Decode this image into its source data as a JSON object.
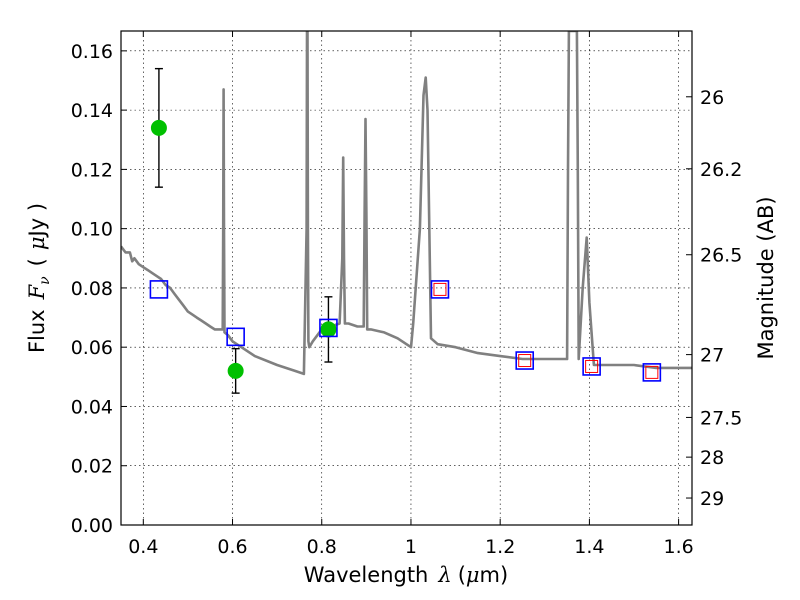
{
  "chart_data": {
    "type": "line",
    "xlabel_text": "Wavelength",
    "xlabel_symbol": "λ",
    "xlabel_unit_open": "(",
    "xlabel_unit_mu": "μ",
    "xlabel_unit_rest": "m)",
    "ylabel_text": "Flux",
    "ylabel_symbol": "F",
    "ylabel_subscript": "ν",
    "ylabel_unit_open": "(",
    "ylabel_unit_mu": "μ",
    "ylabel_unit_rest": "Jy )",
    "y2label": "Magnitude (AB)",
    "xlim": [
      0.35,
      1.63
    ],
    "ylim": [
      0.0,
      0.1667
    ],
    "grid": true,
    "x_ticks": [
      0.4,
      0.6,
      0.8,
      1.0,
      1.2,
      1.4,
      1.6
    ],
    "x_tick_labels": [
      "0.4",
      "0.6",
      "0.8",
      "1",
      "1.2",
      "1.4",
      "1.6"
    ],
    "y_ticks": [
      0.0,
      0.02,
      0.04,
      0.06,
      0.08,
      0.1,
      0.12,
      0.14,
      0.16
    ],
    "y_tick_labels": [
      "0.00",
      "0.02",
      "0.04",
      "0.06",
      "0.08",
      "0.10",
      "0.12",
      "0.14",
      "0.16"
    ],
    "y2_ticks": [
      {
        "label": "26",
        "flux": 0.1445
      },
      {
        "label": "26.2",
        "flux": 0.1202
      },
      {
        "label": "26.5",
        "flux": 0.0912
      },
      {
        "label": "27",
        "flux": 0.0575
      },
      {
        "label": "27.5",
        "flux": 0.0363
      },
      {
        "label": "28",
        "flux": 0.0229
      },
      {
        "label": "29",
        "flux": 0.0091
      }
    ],
    "series": [
      {
        "role": "model-sed",
        "color": "#808080",
        "x": [
          0.35,
          0.36,
          0.37,
          0.375,
          0.38,
          0.39,
          0.4,
          0.41,
          0.42,
          0.43,
          0.44,
          0.45,
          0.46,
          0.47,
          0.48,
          0.49,
          0.5,
          0.51,
          0.52,
          0.53,
          0.54,
          0.55,
          0.56,
          0.57,
          0.578,
          0.579,
          0.58,
          0.581,
          0.582,
          0.59,
          0.6,
          0.62,
          0.65,
          0.7,
          0.74,
          0.76,
          0.766,
          0.767,
          0.768,
          0.769,
          0.77,
          0.772,
          0.78,
          0.79,
          0.8,
          0.82,
          0.84,
          0.846,
          0.848,
          0.85,
          0.852,
          0.86,
          0.88,
          0.894,
          0.896,
          0.898,
          0.9,
          0.902,
          0.91,
          0.94,
          0.97,
          1.0,
          1.005,
          1.02,
          1.028,
          1.033,
          1.037,
          1.045,
          1.06,
          1.1,
          1.15,
          1.2,
          1.25,
          1.3,
          1.35,
          1.352,
          1.354,
          1.372,
          1.374,
          1.376,
          1.385,
          1.394,
          1.4,
          1.41,
          1.45,
          1.5,
          1.55,
          1.6,
          1.63
        ],
        "y": [
          0.094,
          0.092,
          0.092,
          0.089,
          0.09,
          0.088,
          0.087,
          0.086,
          0.085,
          0.084,
          0.083,
          0.081,
          0.08,
          0.078,
          0.076,
          0.074,
          0.072,
          0.071,
          0.07,
          0.069,
          0.068,
          0.067,
          0.066,
          0.066,
          0.066,
          0.1,
          0.147,
          0.1,
          0.065,
          0.064,
          0.062,
          0.06,
          0.057,
          0.054,
          0.052,
          0.051,
          0.1,
          0.167,
          0.167,
          0.1,
          0.062,
          0.06,
          0.062,
          0.064,
          0.066,
          0.067,
          0.068,
          0.09,
          0.124,
          0.09,
          0.068,
          0.068,
          0.067,
          0.067,
          0.105,
          0.137,
          0.105,
          0.066,
          0.066,
          0.065,
          0.063,
          0.06,
          0.068,
          0.1,
          0.145,
          0.151,
          0.14,
          0.063,
          0.061,
          0.06,
          0.058,
          0.057,
          0.056,
          0.056,
          0.056,
          0.12,
          0.1667,
          0.1667,
          0.12,
          0.056,
          0.08,
          0.097,
          0.075,
          0.054,
          0.054,
          0.054,
          0.053,
          0.053,
          0.053
        ]
      },
      {
        "role": "observed-photometry",
        "color": "#00c000",
        "x": [
          0.435,
          0.607,
          0.815
        ],
        "y": [
          0.134,
          0.052,
          0.066
        ],
        "y_err_low": [
          0.02,
          0.0075,
          0.011
        ],
        "y_err_high": [
          0.02,
          0.0075,
          0.011
        ]
      },
      {
        "role": "model-photometry",
        "color": "#0000ff",
        "marker": "open-square",
        "x": [
          0.435,
          0.607,
          0.815,
          1.065,
          1.255,
          1.405,
          1.54
        ],
        "y": [
          0.0795,
          0.0635,
          0.0665,
          0.0795,
          0.0555,
          0.0535,
          0.0515
        ]
      },
      {
        "role": "model-photometry-upper",
        "color": "#ff0000",
        "marker": "open-square-small",
        "x": [
          1.065,
          1.255,
          1.405,
          1.54
        ],
        "y": [
          0.0795,
          0.0555,
          0.0535,
          0.0515
        ]
      }
    ]
  }
}
